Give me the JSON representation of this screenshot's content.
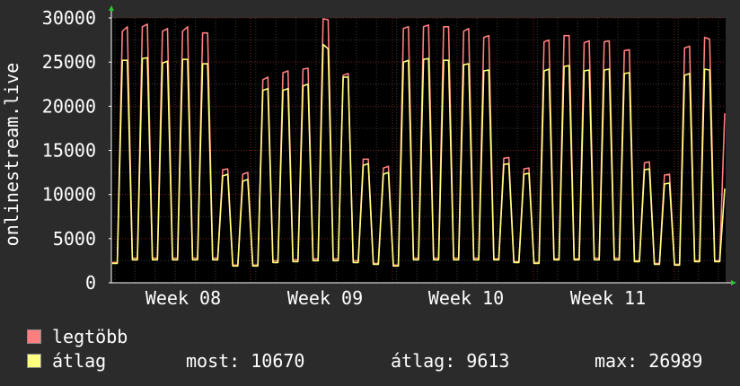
{
  "chart_data": {
    "type": "area",
    "ylabel": "onlinestream.live",
    "ylim": [
      0,
      30000
    ],
    "yticks": [
      "0",
      "5000",
      "10000",
      "15000",
      "20000",
      "25000",
      "30000"
    ],
    "xticks": [
      "Week 08",
      "Week 09",
      "Week 10",
      "Week 11"
    ],
    "grid": true,
    "colors": {
      "background": "#000000",
      "max_series": "#ff7f7f",
      "avg_series": "#ffff7f",
      "axis": "#ffffff",
      "grid": "#3a3a3a",
      "grid_major": "#7a2020"
    },
    "series": [
      {
        "name": "legtöbb",
        "values": [
          2300,
          2300,
          28500,
          29000,
          2800,
          2800,
          29000,
          29300,
          2800,
          2800,
          28500,
          28800,
          2800,
          2800,
          28500,
          29000,
          2800,
          2800,
          28300,
          28300,
          2800,
          2800,
          12800,
          12900,
          2000,
          2000,
          12300,
          12500,
          2000,
          2000,
          23000,
          23300,
          2500,
          2500,
          23800,
          24000,
          2600,
          2600,
          24200,
          24300,
          2700,
          2700,
          29900,
          29800,
          2700,
          2700,
          23500,
          23700,
          2500,
          2500,
          14000,
          14000,
          2200,
          2200,
          13000,
          13200,
          2000,
          2000,
          28800,
          29000,
          2800,
          2800,
          29000,
          29200,
          2800,
          2800,
          29000,
          29000,
          2800,
          2800,
          28500,
          28800,
          2800,
          2800,
          27800,
          28000,
          2700,
          2700,
          14100,
          14200,
          2400,
          2400,
          12900,
          13000,
          2300,
          2300,
          27300,
          27500,
          2700,
          2700,
          28000,
          28000,
          2700,
          2700,
          27200,
          27400,
          2800,
          2800,
          27300,
          27400,
          2800,
          2800,
          26300,
          26400,
          2500,
          2500,
          13600,
          13700,
          2200,
          2200,
          12200,
          12300,
          2100,
          2100,
          26600,
          26800,
          2500,
          2500,
          27800,
          27600,
          2500,
          2500,
          19200
        ]
      },
      {
        "name": "átlag",
        "values": [
          2200,
          2200,
          25200,
          25200,
          2600,
          2600,
          25400,
          25500,
          2600,
          2600,
          24900,
          25100,
          2600,
          2600,
          25300,
          25300,
          2600,
          2600,
          24800,
          24800,
          2600,
          2600,
          12100,
          12300,
          1900,
          1900,
          11500,
          11700,
          1900,
          1900,
          21800,
          22000,
          2300,
          2300,
          21800,
          22000,
          2400,
          2400,
          22300,
          22500,
          2500,
          2500,
          27000,
          26500,
          2500,
          2500,
          23300,
          23300,
          2300,
          2300,
          13300,
          13500,
          2100,
          2100,
          12300,
          12500,
          1900,
          1900,
          25000,
          25200,
          2600,
          2600,
          25300,
          25400,
          2600,
          2600,
          25200,
          25200,
          2600,
          2600,
          24700,
          24800,
          2600,
          2600,
          24000,
          24100,
          2600,
          2600,
          13400,
          13500,
          2300,
          2300,
          12300,
          12400,
          2200,
          2200,
          24000,
          24200,
          2600,
          2600,
          24500,
          24600,
          2600,
          2600,
          24000,
          24100,
          2600,
          2600,
          24100,
          24200,
          2600,
          2600,
          23700,
          23800,
          2400,
          2400,
          12800,
          12900,
          2100,
          2100,
          11200,
          11300,
          2000,
          2000,
          23500,
          23700,
          2400,
          2400,
          24200,
          24100,
          2400,
          2400,
          10670
        ]
      }
    ]
  },
  "legend": {
    "max_label": "legtöbb",
    "avg_label": "átlag",
    "now_text": "most: 10670",
    "avg_text": "átlag: 9613",
    "max_text": "max: 26989"
  }
}
